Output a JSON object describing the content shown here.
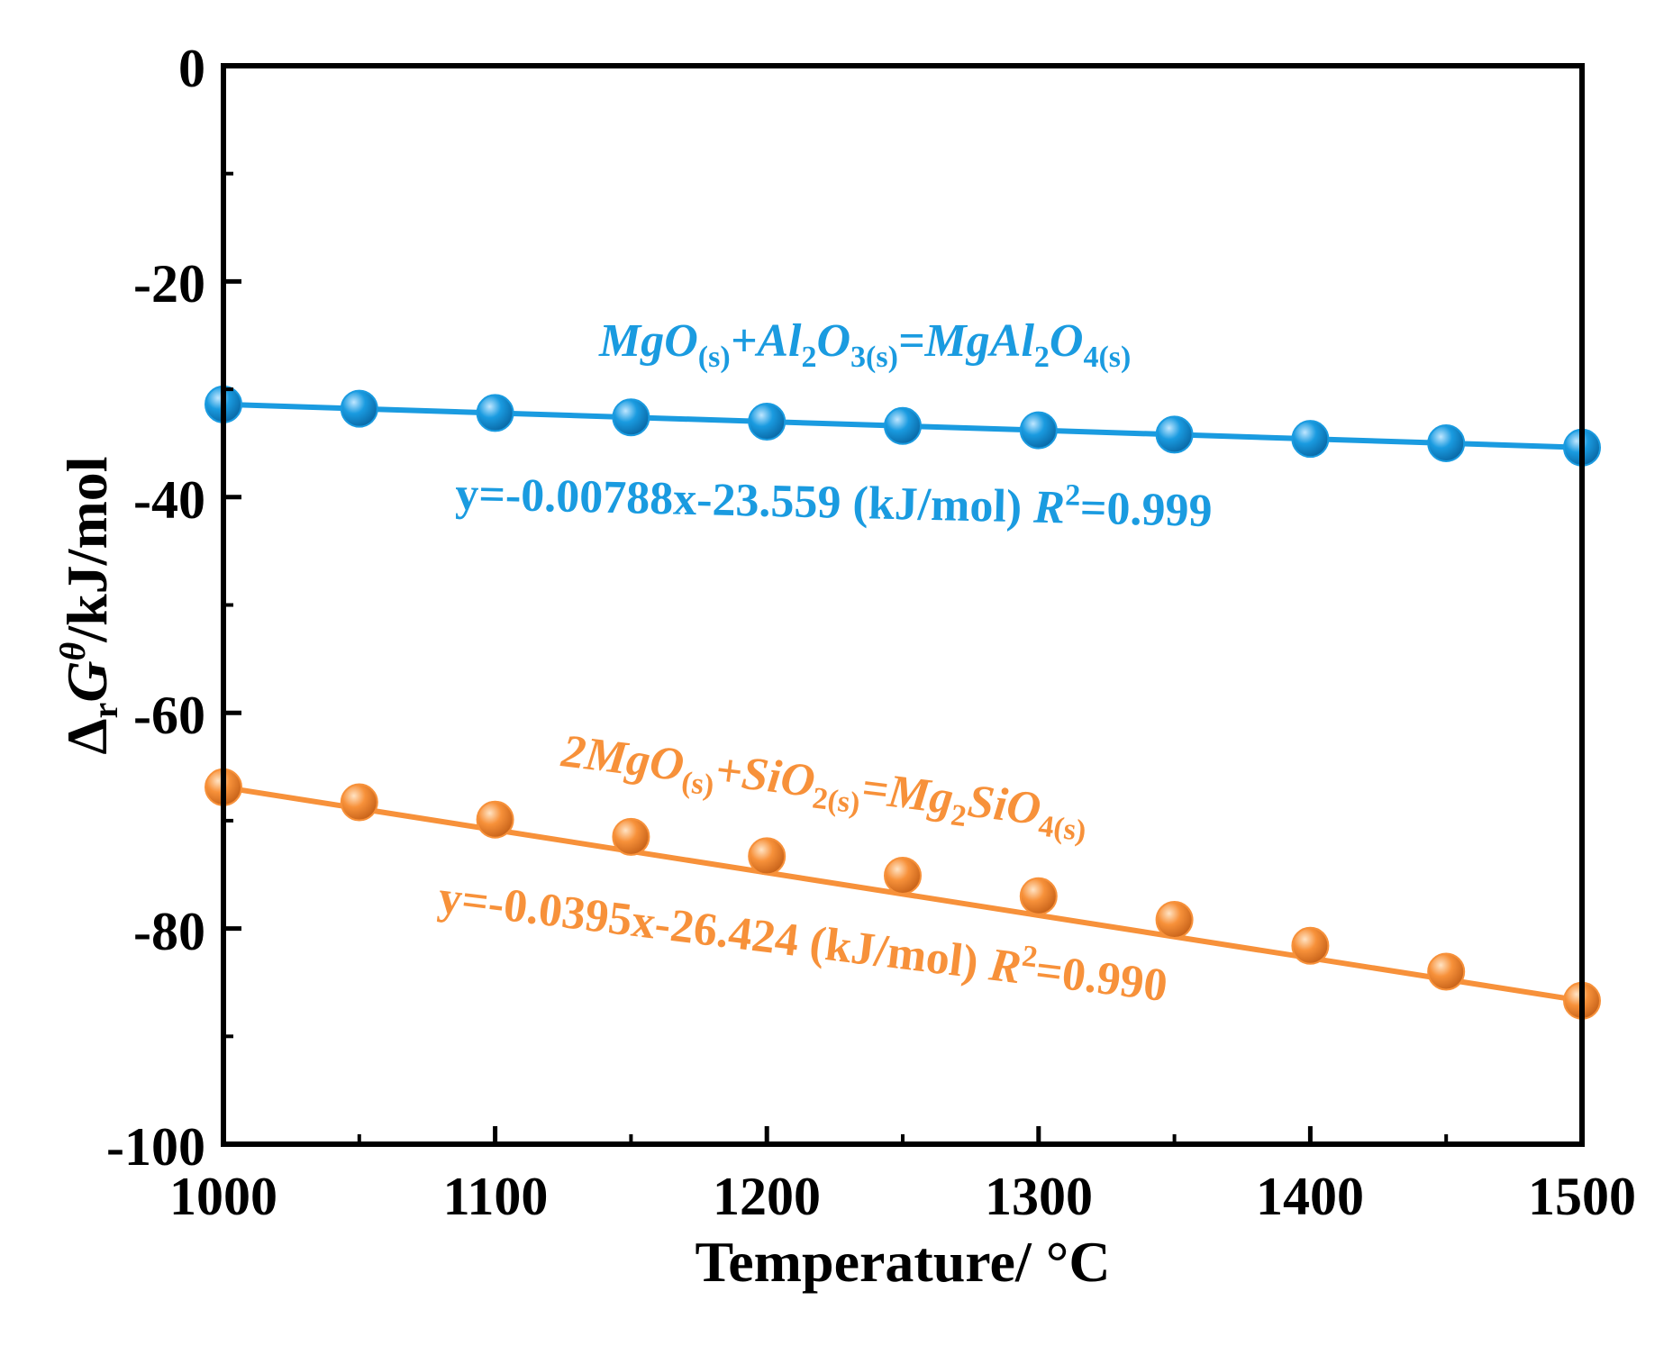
{
  "chart_data": {
    "type": "scatter",
    "title": "",
    "xlabel": "Temperature/ °C",
    "ylabel": {
      "delta": "Δ",
      "delta_sub": "r",
      "g": "G",
      "g_sup": "θ",
      "unit": "/kJ/mol"
    },
    "xlim": [
      1000,
      1500
    ],
    "ylim": [
      -100,
      0
    ],
    "x_ticks": [
      1000,
      1100,
      1200,
      1300,
      1400,
      1500
    ],
    "x_tick_labels": [
      "1000",
      "1100",
      "1200",
      "1300",
      "1400",
      "1500"
    ],
    "y_ticks": [
      0,
      -20,
      -40,
      -60,
      -80,
      -100
    ],
    "y_tick_labels": [
      "0",
      "-20",
      "-40",
      "-60",
      "-80",
      "-100"
    ],
    "grid": false,
    "x": [
      1000,
      1050,
      1100,
      1150,
      1200,
      1250,
      1300,
      1350,
      1400,
      1450,
      1500
    ],
    "series": [
      {
        "name": "MgO(s)+Al2O3(s)=MgAl2O4(s)",
        "color": "#1a9be0",
        "values": [
          -31.4,
          -31.8,
          -32.2,
          -32.6,
          -33.0,
          -33.4,
          -33.8,
          -34.2,
          -34.6,
          -35.0,
          -35.4
        ],
        "fit": {
          "slope": -0.00788,
          "intercept": -23.559
        },
        "reaction": {
          "p1": "MgO",
          "s1": "(s)",
          "p2": "+Al",
          "s2": "2",
          "p3": "O",
          "s3": "3(s)",
          "p4": "=MgAl",
          "s4": "2",
          "p5": "O",
          "s5": "4(s)"
        },
        "fit_text": {
          "eq": "y=-0.00788x-23.559 (kJ/mol) ",
          "r": "R",
          "r_sup": "2",
          "r_val": "=0.999"
        }
      },
      {
        "name": "2MgO(s)+SiO2(s)=Mg2SiO4(s)",
        "color": "#f7913a",
        "values": [
          -66.9,
          -68.3,
          -69.9,
          -71.5,
          -73.3,
          -75.1,
          -77.0,
          -79.2,
          -81.6,
          -84.0,
          -86.7
        ],
        "fit": {
          "slope": -0.0395,
          "intercept": -26.424
        },
        "reaction": {
          "p1": "2MgO",
          "s1": "(s)",
          "p2": "+SiO",
          "s2": "2(s)",
          "p3": "=Mg",
          "s3": "2",
          "p4": "SiO",
          "s4": "4(s)"
        },
        "fit_text": {
          "eq": "y=-0.0395x-26.424 (kJ/mol) ",
          "r": "R",
          "r_sup": "2",
          "r_val": "=0.990"
        }
      }
    ]
  }
}
